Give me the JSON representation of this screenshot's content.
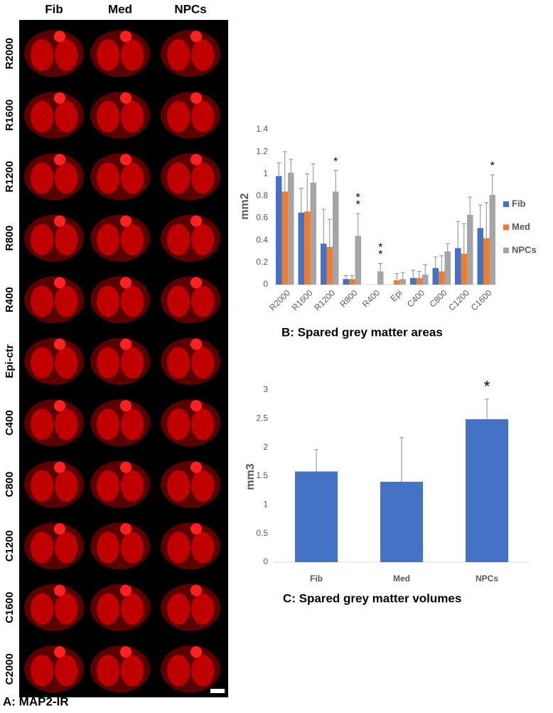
{
  "image_panel": {
    "columns": [
      "Fib",
      "Med",
      "NPCs"
    ],
    "rows": [
      "R2000",
      "R1600",
      "R1200",
      "R800",
      "R400",
      "Epi-ctr",
      "C400",
      "C800",
      "C1200",
      "C1600",
      "C2000"
    ],
    "caption": "A: MAP2-IR"
  },
  "chart_data": [
    {
      "type": "bar",
      "title": "B: Spared grey matter areas",
      "y_label": "mm2",
      "categories": [
        "R2000",
        "R1600",
        "R1200",
        "R800",
        "R400",
        "Epi",
        "C400",
        "C800",
        "C1200",
        "C1600"
      ],
      "series": [
        {
          "name": "Fib",
          "color": "#4472c4",
          "values": [
            0.98,
            0.65,
            0.37,
            0.05,
            0,
            0,
            0.06,
            0.15,
            0.33,
            0.51
          ],
          "errors": [
            0.12,
            0.22,
            0.31,
            0.03,
            0,
            0,
            0.07,
            0.1,
            0.24,
            0.21
          ]
        },
        {
          "name": "Med",
          "color": "#ed7d31",
          "values": [
            0.84,
            0.66,
            0.34,
            0.05,
            0,
            0.04,
            0.06,
            0.12,
            0.28,
            0.42
          ],
          "errors": [
            0.36,
            0.34,
            0.25,
            0.03,
            0,
            0.06,
            0.06,
            0.14,
            0.27,
            0.32
          ]
        },
        {
          "name": "NPCs",
          "color": "#a5a5a5",
          "values": [
            1.01,
            0.92,
            0.84,
            0.44,
            0.12,
            0.05,
            0.09,
            0.3,
            0.63,
            0.81
          ],
          "errors": [
            0.12,
            0.17,
            0.19,
            0.2,
            0.07,
            0.06,
            0.09,
            0.07,
            0.16,
            0.18
          ]
        }
      ],
      "annotations": [
        {
          "category": "R1200",
          "series": "NPCs",
          "text": "*"
        },
        {
          "category": "R800",
          "series": "NPCs",
          "text": "*"
        },
        {
          "category": "R800",
          "series": "NPCs",
          "text": "*"
        },
        {
          "category": "R400",
          "series": "NPCs",
          "text": "*"
        },
        {
          "category": "R400",
          "series": "NPCs",
          "text": "*"
        },
        {
          "category": "C1600",
          "series": "NPCs",
          "text": "*"
        }
      ],
      "ylim": [
        0,
        1.4
      ],
      "yticks": [
        0,
        0.2,
        0.4,
        0.6,
        0.8,
        1,
        1.2,
        1.4
      ],
      "legend": "right",
      "grid": false
    },
    {
      "type": "bar",
      "title": "C: Spared grey matter volumes",
      "y_label": "mm3",
      "categories": [
        "Fib",
        "Med",
        "NPCs"
      ],
      "series": [
        {
          "color": "#4472c4",
          "values": [
            1.58,
            1.4,
            2.49
          ],
          "errors": [
            0.38,
            0.77,
            0.35
          ]
        }
      ],
      "annotations": [
        {
          "category": "NPCs",
          "text": "*"
        }
      ],
      "ylim": [
        0,
        3
      ],
      "yticks": [
        0,
        0.5,
        1,
        1.5,
        2,
        2.5,
        3
      ],
      "grid": false
    }
  ]
}
